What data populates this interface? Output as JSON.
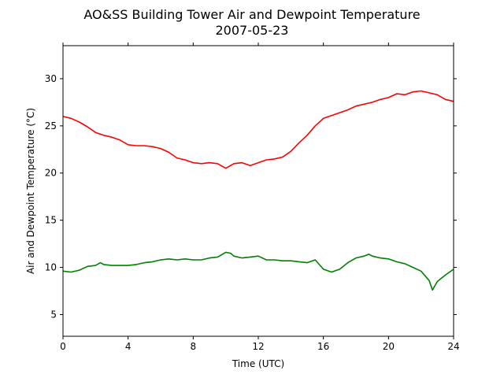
{
  "chart_data": {
    "type": "line",
    "title": "AO&SS Building Tower Air and Dewpoint Temperature",
    "subtitle": "2007-05-23",
    "xlabel": "Time (UTC)",
    "ylabel": "Air and Dewpoint Temperature (°C)",
    "xlim": [
      0,
      24
    ],
    "ylim": [
      2.7,
      33.5
    ],
    "xticks": [
      0,
      4,
      8,
      12,
      16,
      20,
      24
    ],
    "yticks": [
      5,
      10,
      15,
      20,
      25,
      30
    ],
    "grid": false,
    "legend": "none",
    "series": [
      {
        "color": "#ff0000",
        "x": [
          0,
          0.5,
          1,
          1.5,
          2,
          2.5,
          3,
          3.5,
          4,
          4.5,
          5,
          5.5,
          6,
          6.5,
          7,
          7.5,
          8,
          8.5,
          9,
          9.5,
          10,
          10.5,
          11,
          11.5,
          12,
          12.5,
          13,
          13.5,
          14,
          14.5,
          15,
          15.5,
          16,
          16.5,
          17,
          17.5,
          18,
          18.5,
          19,
          19.5,
          20,
          20.5,
          21,
          21.5,
          22,
          22.5,
          23,
          23.5,
          24
        ],
        "y": [
          26.0,
          25.8,
          25.4,
          24.9,
          24.3,
          24.0,
          23.8,
          23.5,
          23.0,
          22.9,
          22.9,
          22.8,
          22.6,
          22.2,
          21.6,
          21.4,
          21.1,
          21.0,
          21.1,
          21.0,
          20.5,
          21.0,
          21.1,
          20.8,
          21.1,
          21.4,
          21.5,
          21.7,
          22.3,
          23.2,
          24.0,
          25.0,
          25.8,
          26.1,
          26.4,
          26.7,
          27.1,
          27.3,
          27.5,
          27.8,
          28.0,
          28.4,
          28.3,
          28.6,
          28.7,
          28.5,
          28.3,
          27.8,
          27.6
        ]
      },
      {
        "color": "#008000",
        "x": [
          0,
          0.5,
          1,
          1.5,
          2,
          2.3,
          2.5,
          3,
          3.5,
          4,
          4.5,
          5,
          5.5,
          6,
          6.5,
          7,
          7.5,
          8,
          8.5,
          9,
          9.5,
          10,
          10.3,
          10.5,
          11,
          11.5,
          12,
          12.5,
          13,
          13.5,
          14,
          14.5,
          15,
          15.5,
          16,
          16.5,
          17,
          17.5,
          18,
          18.5,
          18.8,
          19,
          19.5,
          20,
          20.5,
          21,
          21.5,
          22,
          22.5,
          22.7,
          23,
          23.5,
          24
        ],
        "y": [
          9.6,
          9.5,
          9.7,
          10.1,
          10.2,
          10.5,
          10.3,
          10.2,
          10.2,
          10.2,
          10.3,
          10.5,
          10.6,
          10.8,
          10.9,
          10.8,
          10.9,
          10.8,
          10.8,
          11.0,
          11.1,
          11.6,
          11.5,
          11.2,
          11.0,
          11.1,
          11.2,
          10.8,
          10.8,
          10.7,
          10.7,
          10.6,
          10.5,
          10.8,
          9.8,
          9.5,
          9.8,
          10.5,
          11.0,
          11.2,
          11.4,
          11.2,
          11.0,
          10.9,
          10.6,
          10.4,
          10.0,
          9.6,
          8.6,
          7.6,
          8.5,
          9.2,
          9.8
        ]
      }
    ]
  }
}
